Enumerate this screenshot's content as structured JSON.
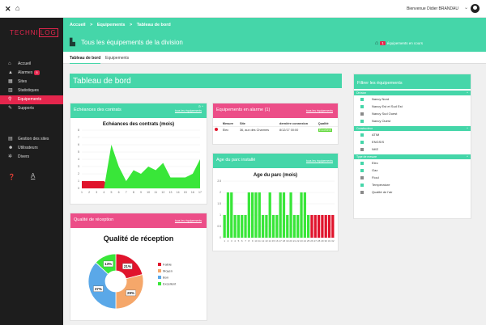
{
  "topbar": {
    "user_name": "Bienvenue Didier BRANDAU"
  },
  "colors": {
    "accent": "#45d6a9",
    "alert": "#e5264d",
    "pink": "#ec4e88",
    "sidebar": "#1d1d1d"
  },
  "logo": {
    "part1": "TECHNI",
    "part2": "LOG"
  },
  "sidebar": {
    "items": [
      {
        "label": "Accueil",
        "icon": "home-icon"
      },
      {
        "label": "Alarmes",
        "badge": "5",
        "icon": "bell-icon"
      },
      {
        "label": "Sites",
        "icon": "grid-icon"
      },
      {
        "label": "Statistiques",
        "icon": "chart-icon"
      },
      {
        "label": "Equipements",
        "icon": "search-icon"
      },
      {
        "label": "Supports",
        "icon": "pen-icon"
      }
    ],
    "items2": [
      {
        "label": "Gestion des sites",
        "icon": "table-icon"
      },
      {
        "label": "Utilisateurs",
        "icon": "users-icon"
      },
      {
        "label": "Divers",
        "icon": "settings-icon"
      }
    ]
  },
  "breadcrumb": {
    "home": "Accueil",
    "sep1": ">",
    "l2": "Equipements",
    "sep2": ">",
    "l3": "Tableau de bord"
  },
  "titlebar": {
    "title": "Tous les équipements de la division",
    "count_badge": "1",
    "count_label": "équipements en cours"
  },
  "tabs": [
    {
      "label": "Tableau de bord"
    },
    {
      "label": "Equipements"
    }
  ],
  "main": {
    "title": "Tableau de bord"
  },
  "panels": {
    "contracts": {
      "header": "Echéances des contrats",
      "link": "tous les équipements",
      "chart_title": "Echéances des contrats (mois)"
    },
    "alarms": {
      "header": "Equipements en alarme (1)",
      "link": "tous les équipements",
      "columns": [
        "",
        "Mesure",
        "Site",
        "dernière connexion",
        "Qualité"
      ],
      "rows": [
        {
          "mesure": "Elec",
          "site": "36, aux des Charmes",
          "conn": "8/12/17 00:00",
          "qualite": "Excellent"
        }
      ]
    },
    "age": {
      "header": "Age du parc installé",
      "link": "tous les équipements",
      "chart_title": "Age du parc (mois)"
    },
    "quality": {
      "header": "Qualité de réception",
      "link": "tous les équipements",
      "chart_title": "Qualité de réception"
    }
  },
  "filter": {
    "title": "Filtrer les équipements",
    "sections": [
      {
        "label": "Division",
        "items": [
          {
            "label": "Nancy Nord",
            "color": "#45d6a9"
          },
          {
            "label": "Nancy Est et Sud Est",
            "color": "#45d6a9"
          },
          {
            "label": "Nancy Sud Ouest",
            "color": "#8a8a8a"
          },
          {
            "label": "Nancy Ouest",
            "color": "#45d6a9"
          }
        ]
      },
      {
        "label": "Constructeur",
        "items": [
          {
            "label": "ATIM",
            "color": "#45d6a9"
          },
          {
            "label": "ENGSIS",
            "color": "#45d6a9"
          },
          {
            "label": "NKE",
            "color": "#8a8a8a"
          }
        ]
      },
      {
        "label": "Type de mesure",
        "items": [
          {
            "label": "Elec",
            "color": "#45d6a9"
          },
          {
            "label": "Gaz",
            "color": "#45d6a9"
          },
          {
            "label": "Fioul",
            "color": "#8a8a8a"
          },
          {
            "label": "Température",
            "color": "#45d6a9"
          },
          {
            "label": "Qualité de l'air",
            "color": "#8a8a8a"
          }
        ]
      }
    ]
  },
  "chart_data": [
    {
      "type": "area",
      "title": "Echéances des contrats (mois)",
      "x": [
        "1",
        "2",
        "3",
        "4",
        "5",
        "6",
        "7",
        "8",
        "9",
        "10",
        "11",
        "12",
        "13",
        "14",
        "15",
        "16",
        "17"
      ],
      "y_ticks": [
        "0",
        "1",
        "2",
        "3",
        "4",
        "5",
        "6",
        "7",
        "8"
      ],
      "ylim": [
        0,
        8
      ],
      "series": [
        {
          "color": "#e0142c",
          "values": [
            1,
            1,
            1,
            1,
            0,
            0,
            0,
            0,
            0,
            0,
            0,
            0,
            0,
            0,
            0,
            0,
            0
          ]
        },
        {
          "color": "#39e639",
          "values": [
            0,
            0,
            0,
            0,
            6,
            3,
            1,
            2.5,
            2,
            3,
            2.5,
            3.5,
            1.5,
            1.5,
            1.5,
            2,
            4
          ]
        }
      ]
    },
    {
      "type": "bar",
      "title": "Age du parc (mois)",
      "categories": [
        "1",
        "2",
        "3",
        "4",
        "5",
        "6",
        "7",
        "8",
        "9",
        "10",
        "11",
        "12",
        "13",
        "14",
        "15",
        "16",
        "17",
        "18",
        "19",
        "20",
        "21",
        "22",
        "23",
        "24",
        "25",
        "26",
        "27",
        "28",
        "29",
        "30",
        "31",
        "32"
      ],
      "y_ticks": [
        "0",
        "0.5",
        "1",
        "1.5",
        "2",
        "2.5"
      ],
      "ylim": [
        0,
        2.5
      ],
      "values": [
        1,
        2,
        2,
        1,
        1,
        1,
        1,
        2,
        2,
        2,
        2,
        1,
        1,
        2,
        1,
        1,
        2,
        2,
        1,
        2,
        1,
        1,
        2,
        2,
        1,
        1,
        1,
        1,
        1,
        1,
        1,
        1
      ],
      "colors": [
        "#39e639",
        "#39e639",
        "#39e639",
        "#39e639",
        "#39e639",
        "#39e639",
        "#39e639",
        "#39e639",
        "#39e639",
        "#39e639",
        "#39e639",
        "#39e639",
        "#39e639",
        "#39e639",
        "#39e639",
        "#39e639",
        "#39e639",
        "#39e639",
        "#39e639",
        "#39e639",
        "#39e639",
        "#39e639",
        "#39e639",
        "#39e639",
        "#39e639",
        "#e0142c",
        "#e0142c",
        "#e0142c",
        "#e0142c",
        "#e0142c",
        "#e0142c",
        "#e0142c"
      ]
    },
    {
      "type": "pie",
      "title": "Qualité de réception",
      "categories": [
        "Faible",
        "Moyen",
        "Bon",
        "Excellent"
      ],
      "values": [
        21,
        29,
        37,
        13
      ],
      "labels": [
        "21%",
        "29%",
        "37%",
        "13%"
      ],
      "colors": [
        "#e0142c",
        "#f5a76a",
        "#5aa8e8",
        "#39e639"
      ],
      "legend": "right"
    }
  ]
}
